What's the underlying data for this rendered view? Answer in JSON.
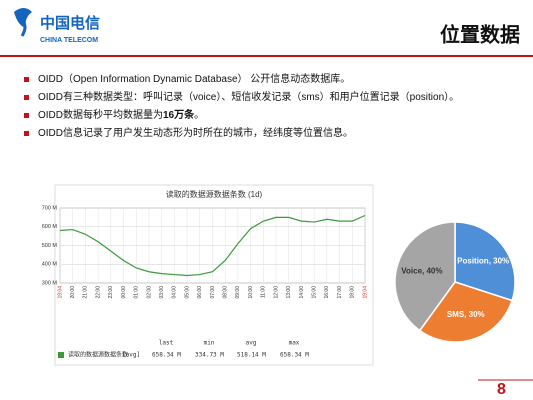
{
  "header": {
    "logo_cn": "中国电信",
    "logo_en": "CHINA TELECOM",
    "title": "位置数据"
  },
  "bullets": [
    "OIDD（Open Information Dynamic Database） 公开信息动态数据库。",
    "OIDD有三种数据类型：呼叫记录（voice）、短信收发记录（sms）和用户位置记录（position）。",
    [
      "OIDD数据每秒平均数据量为",
      "16万条",
      "。"
    ],
    "OIDD信息记录了用户发生动态形为时所在的城市，经纬度等位置信息。"
  ],
  "chart_data": [
    {
      "type": "line",
      "title": "读取的数据源数据条数 (1d)",
      "categories": [
        "19:04",
        "20:00",
        "21:00",
        "22:00",
        "23:00",
        "00:00",
        "01:00",
        "02:00",
        "03:00",
        "04:00",
        "05:00",
        "06:00",
        "07:00",
        "08:00",
        "09:00",
        "10:00",
        "11:00",
        "12:00",
        "13:00",
        "14:00",
        "15:00",
        "16:00",
        "17:00",
        "18:00",
        "19:04"
      ],
      "series": [
        {
          "name": "读取的数据源数据条数",
          "color": "#3a9a3a",
          "values": [
            580,
            585,
            560,
            520,
            470,
            420,
            380,
            360,
            350,
            345,
            340,
            345,
            360,
            420,
            510,
            590,
            630,
            650,
            650,
            630,
            625,
            640,
            630,
            630,
            660
          ]
        }
      ],
      "ylim": [
        300,
        700
      ],
      "yticks": [
        {
          "value": 300,
          "label": "300 M"
        },
        {
          "value": 400,
          "label": "400 M"
        },
        {
          "value": 500,
          "label": "500 M"
        },
        {
          "value": 600,
          "label": "600 M"
        },
        {
          "value": 700,
          "label": "700 M"
        }
      ],
      "grid": true,
      "legend_stats": {
        "type": "[avg]",
        "headers": [
          "last",
          "min",
          "avg",
          "max"
        ],
        "values": [
          "658.34 M",
          "334.73 M",
          "518.14 M",
          "658.34 M"
        ]
      }
    },
    {
      "type": "pie",
      "categories": [
        "Position",
        "SMS",
        "Voice"
      ],
      "values": [
        30,
        30,
        40
      ],
      "value_labels": [
        "Position, 30%",
        "SMS, 30%",
        "Voice, 40%"
      ],
      "colors": [
        "#4f8fd8",
        "#ed7d31",
        "#a5a5a5"
      ]
    }
  ],
  "page_number": "8"
}
